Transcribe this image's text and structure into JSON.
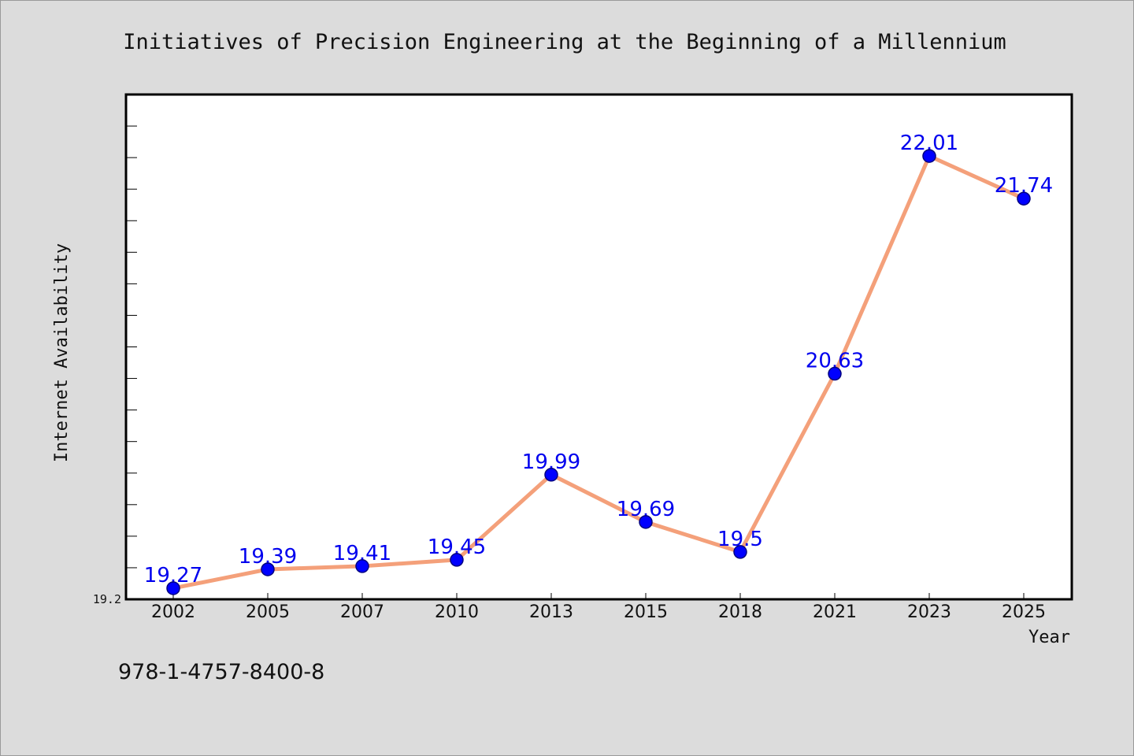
{
  "isbn": "978-1-4757-8400-8",
  "chart_data": {
    "type": "line",
    "title": "Initiatives of Precision Engineering at the Beginning of a Millennium",
    "xlabel": "Year",
    "ylabel": "Internet Availability",
    "categories": [
      "2002",
      "2005",
      "2007",
      "2010",
      "2013",
      "2015",
      "2018",
      "2021",
      "2023",
      "2025"
    ],
    "series": [
      {
        "values": [
          19.27,
          19.39,
          19.41,
          19.45,
          19.99,
          19.69,
          19.5,
          20.63,
          22.01,
          21.74
        ],
        "data_labels": [
          "19.27",
          "19.39",
          "19.41",
          "19.45",
          "19.99",
          "19.69",
          "19.5",
          "20.63",
          "22.01",
          "21.74"
        ]
      }
    ],
    "ylim": [
      19.2,
      22.4
    ],
    "yticks_labeled": [
      "19.2"
    ],
    "ytick_step": 0.2,
    "grid": false,
    "colors": {
      "line": "#f4a07a",
      "marker": "#0000ff",
      "marker_edge": "#000080",
      "data_label": "#0000ee",
      "plot_bg": "#ffffff",
      "page_bg": "#dcdcdc"
    }
  }
}
